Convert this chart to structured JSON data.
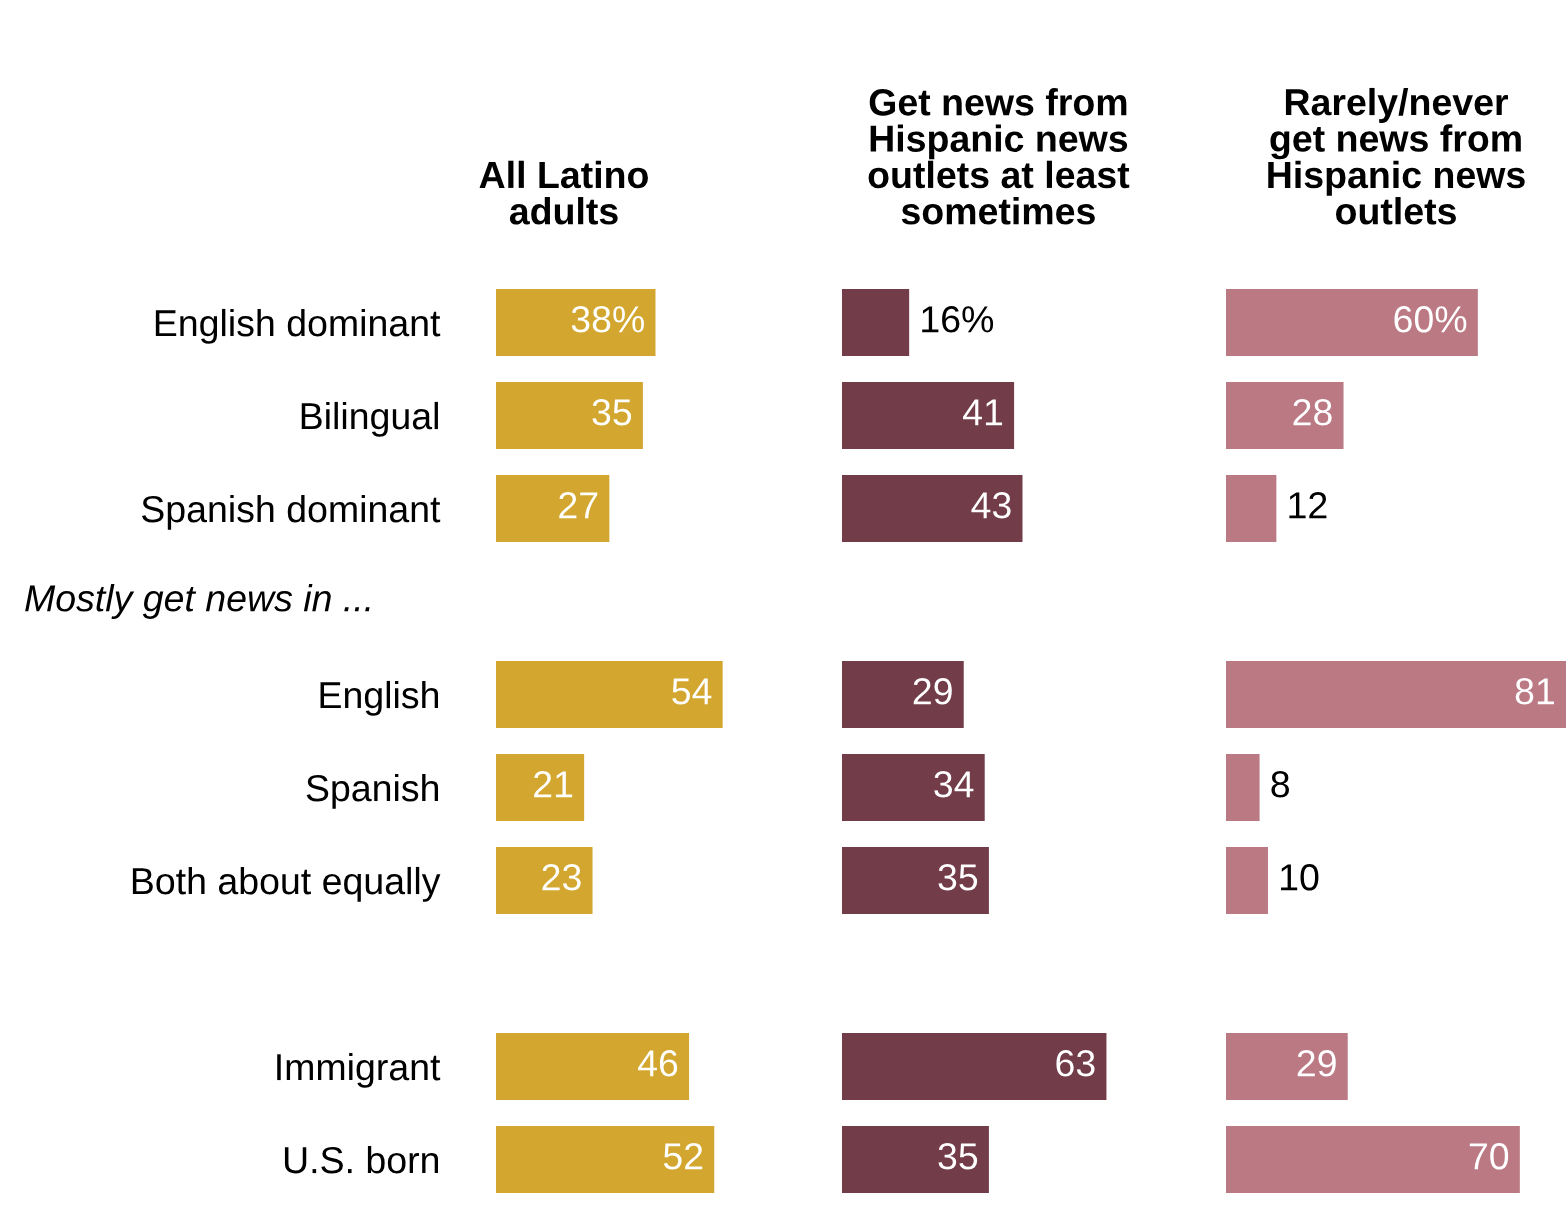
{
  "chart_data": [
    {
      "type": "bar",
      "orientation": "horizontal",
      "title": "All Latino\nadults",
      "categories": [
        "English dominant",
        "Bilingual",
        "Spanish dominant",
        null,
        "English",
        "Spanish",
        "Both about equally",
        null,
        "Immigrant",
        "U.S. born"
      ],
      "series": [
        {
          "color": "#d3a72f",
          "values": [
            38,
            35,
            27,
            null,
            54,
            21,
            23,
            null,
            46,
            52
          ],
          "value_labels": [
            "38%",
            "35",
            "27",
            null,
            "54",
            "21",
            "23",
            null,
            "46",
            "52"
          ]
        }
      ],
      "annotations": [
        "Mostly get news in ..."
      ]
    },
    {
      "type": "bar",
      "orientation": "horizontal",
      "title": "Get news from\nHispanic news\noutlets at least\nsometimes",
      "categories": [
        null,
        null,
        null,
        null,
        null,
        null,
        null,
        null,
        null,
        null
      ],
      "series": [
        {
          "color": "#723c49",
          "values": [
            16,
            41,
            43,
            null,
            29,
            34,
            35,
            null,
            63,
            35
          ],
          "value_labels": [
            "16%",
            "41",
            "43",
            null,
            "29",
            "34",
            "35",
            null,
            "63",
            "35"
          ]
        }
      ]
    },
    {
      "type": "bar",
      "orientation": "horizontal",
      "title": "Rarely/never\nget news from\nHispanic news\noutlets",
      "categories": [
        null,
        null,
        null,
        null,
        null,
        null,
        null,
        null,
        null,
        null
      ],
      "series": [
        {
          "color": "#bb7984",
          "values": [
            60,
            28,
            12,
            null,
            81,
            8,
            10,
            null,
            29,
            70
          ],
          "value_labels": [
            "60%",
            "28",
            "12",
            null,
            "81",
            "8",
            "10",
            null,
            "29",
            "70"
          ]
        }
      ]
    }
  ]
}
